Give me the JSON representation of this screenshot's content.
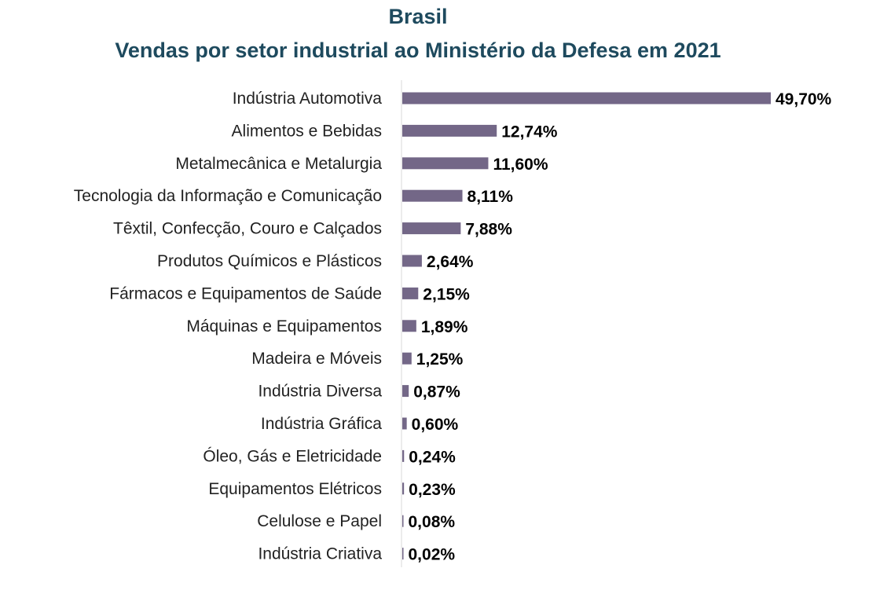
{
  "chart_data": {
    "type": "bar",
    "orientation": "horizontal",
    "title": "Brasil",
    "subtitle": "Vendas por setor industrial ao Ministério da Defesa em 2021",
    "categories": [
      "Indústria Automotiva",
      "Alimentos e Bebidas",
      "Metalmecânica e Metalurgia",
      "Tecnologia da Informação e Comunicação",
      "Têxtil, Confecção, Couro e Calçados",
      "Produtos Químicos e Plásticos",
      "Fármacos e Equipamentos de Saúde",
      "Máquinas e Equipamentos",
      "Madeira e Móveis",
      "Indústria Diversa",
      "Indústria Gráfica",
      "Óleo, Gás e Eletricidade",
      "Equipamentos Elétricos",
      "Celulose e Papel",
      "Indústria Criativa"
    ],
    "values": [
      49.7,
      12.74,
      11.6,
      8.11,
      7.88,
      2.64,
      2.15,
      1.89,
      1.25,
      0.87,
      0.6,
      0.24,
      0.23,
      0.08,
      0.02
    ],
    "data_labels": [
      "49,70%",
      "12,74%",
      "11,60%",
      "8,11%",
      "7,88%",
      "2,64%",
      "2,15%",
      "1,89%",
      "1,25%",
      "0,87%",
      "0,60%",
      "0,24%",
      "0,23%",
      "0,08%",
      "0,02%"
    ],
    "unit": "%",
    "xlim": [
      0,
      49.7
    ],
    "grid": false,
    "legend": "none",
    "colors": {
      "bar": "#736787",
      "title": "#1e4a5e",
      "axis": "#d9d9d9"
    }
  }
}
